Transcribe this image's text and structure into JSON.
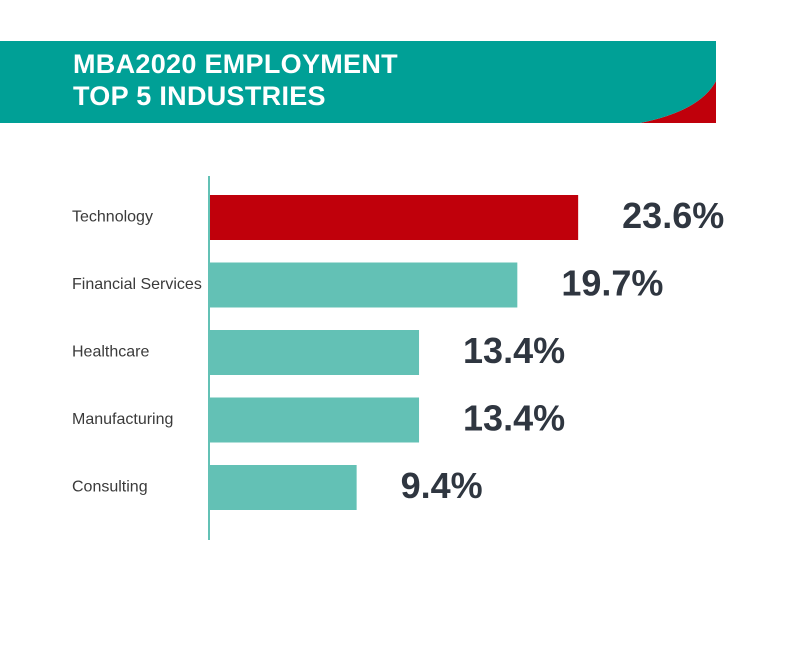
{
  "header": {
    "title_line1": "MBA2020 EMPLOYMENT",
    "title_line2": "TOP 5 INDUSTRIES"
  },
  "colors": {
    "banner": "#00A096",
    "banner_accent": "#C0000B",
    "highlight_bar": "#C0000B",
    "bar": "#63C1B5",
    "axis": "#63C1B5",
    "value_text": "#2F3640",
    "category_text": "#3A3A3A"
  },
  "chart_data": {
    "type": "bar",
    "orientation": "horizontal",
    "categories": [
      "Technology",
      "Financial Services",
      "Healthcare",
      "Manufacturing",
      "Consulting"
    ],
    "values": [
      23.6,
      19.7,
      13.4,
      13.4,
      9.4
    ],
    "value_labels": [
      "23.6%",
      "19.7%",
      "13.4%",
      "13.4%",
      "9.4%"
    ],
    "highlight_index": 0,
    "xlim": [
      0,
      26
    ],
    "grid": false,
    "legend": "none"
  }
}
